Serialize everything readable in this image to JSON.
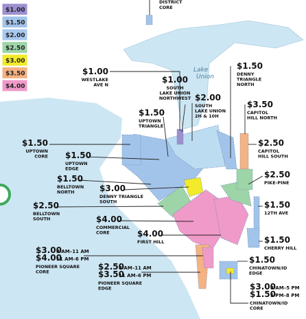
{
  "legend": [
    "$1.00",
    "$1.50",
    "$2.00",
    "$2.50",
    "$3.00",
    "$3.50",
    "$4.00"
  ],
  "top_label": [
    "DISTRICT",
    "CORE"
  ],
  "lake_label": [
    "Lake",
    "Union"
  ],
  "zones": [
    {
      "rates": [
        {
          "rate": "$1.00"
        }
      ],
      "name": [
        "WESTLAKE",
        "AVE N"
      ]
    },
    {
      "rates": [
        {
          "rate": "$1.00"
        }
      ],
      "name": [
        "SOUTH",
        "LAKE UNION",
        "NORTHWEST"
      ]
    },
    {
      "rates": [
        {
          "rate": "$1.50"
        }
      ],
      "name": [
        "DENNY",
        "TRIANGLE",
        "NORTH"
      ]
    },
    {
      "rates": [
        {
          "rate": "$2.00"
        }
      ],
      "name": [
        "SOUTH",
        "LAKE UNION",
        "2H & 10H"
      ]
    },
    {
      "rates": [
        {
          "rate": "$1.50"
        }
      ],
      "name": [
        "UPTOWN",
        "TRIANGLE"
      ]
    },
    {
      "rates": [
        {
          "rate": "$3.50"
        }
      ],
      "name": [
        "CAPITOL",
        "HILL NORTH"
      ]
    },
    {
      "rates": [
        {
          "rate": "$1.50"
        }
      ],
      "name": [
        "UPTOWN",
        "CORE"
      ]
    },
    {
      "rates": [
        {
          "rate": "$1.50"
        }
      ],
      "name": [
        "UPTOWN",
        "EDGE"
      ]
    },
    {
      "rates": [
        {
          "rate": "$2.50"
        }
      ],
      "name": [
        "CAPITOL",
        "HILL SOUTH"
      ]
    },
    {
      "rates": [
        {
          "rate": "$1.50"
        }
      ],
      "name": [
        "BELLTOWN",
        "NORTH"
      ]
    },
    {
      "rates": [
        {
          "rate": "$3.00"
        }
      ],
      "name": [
        "DENNY TRIANGLE",
        "SOUTH"
      ]
    },
    {
      "rates": [
        {
          "rate": "$2.50"
        }
      ],
      "name": [
        "PIKE-PINE"
      ]
    },
    {
      "rates": [
        {
          "rate": "$2.50"
        }
      ],
      "name": [
        "BELLTOWN",
        "SOUTH"
      ]
    },
    {
      "rates": [
        {
          "rate": "$4.00"
        }
      ],
      "name": [
        "COMMERCIAL",
        "CORE"
      ]
    },
    {
      "rates": [
        {
          "rate": "$1.50"
        }
      ],
      "name": [
        "12TH AVE"
      ]
    },
    {
      "rates": [
        {
          "rate": "$4.00"
        }
      ],
      "name": [
        "FIRST HILL"
      ]
    },
    {
      "rates": [
        {
          "rate": "$1.50"
        }
      ],
      "name": [
        "CHERRY HILL"
      ]
    },
    {
      "rates": [
        {
          "rate": "$3.00",
          "time": "8 AM–11 AM"
        },
        {
          "rate": "$4.00",
          "time": "11 AM–6 PM"
        }
      ],
      "name": [
        "PIONEER SQUARE",
        "CORE"
      ]
    },
    {
      "rates": [
        {
          "rate": "$2.50",
          "time": "8 AM–11 AM"
        },
        {
          "rate": "$3.50",
          "time": "11 AM–6 PM"
        }
      ],
      "name": [
        "PIONEER SQUARE",
        "EDGE"
      ]
    },
    {
      "rates": [
        {
          "rate": "$1.50"
        }
      ],
      "name": [
        "CHINATOWN/ID",
        "EDGE"
      ]
    },
    {
      "rates": [
        {
          "rate": "$3.00",
          "time": "8 AM–5 PM"
        },
        {
          "rate": "$1.50",
          "time": "5 PM–8 PM"
        }
      ],
      "name": [
        "CHINATOWN/ID",
        "CORE"
      ]
    }
  ]
}
